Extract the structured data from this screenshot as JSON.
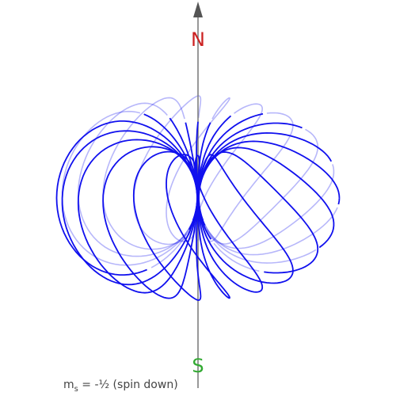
{
  "poles": {
    "north": "N",
    "south": "S"
  },
  "caption": {
    "symbol": "m",
    "subscript": "s",
    "value": " = -½ (spin down)"
  },
  "colors": {
    "field_lines": "#1010ee",
    "axis": "#777777",
    "north": "#cc2222",
    "south": "#33aa33"
  }
}
